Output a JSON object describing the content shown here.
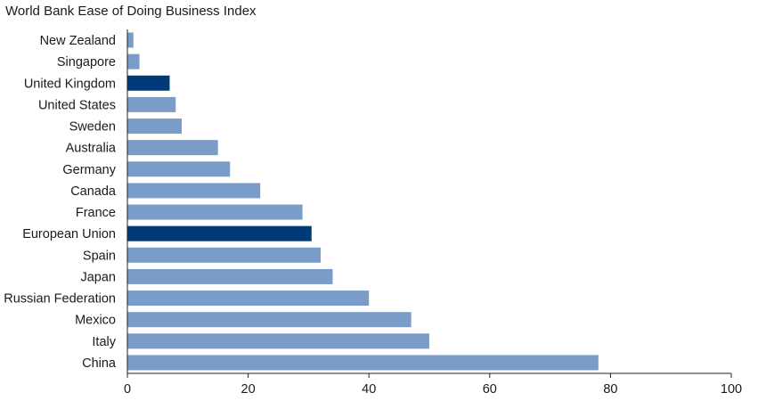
{
  "chart_data": {
    "type": "bar",
    "orientation": "horizontal",
    "title": "World Bank Ease of Doing Business Index",
    "xlabel": "",
    "ylabel": "",
    "categories": [
      "New Zealand",
      "Singapore",
      "United Kingdom",
      "United States",
      "Sweden",
      "Australia",
      "Germany",
      "Canada",
      "France",
      "European Union",
      "Spain",
      "Japan",
      "Russian Federation",
      "Mexico",
      "Italy",
      "China"
    ],
    "values": [
      1,
      2,
      7,
      8,
      9,
      15,
      17,
      22,
      29,
      30.5,
      32,
      34,
      40,
      47,
      50,
      78
    ],
    "highlighted": [
      "United Kingdom",
      "European Union"
    ],
    "xlim": [
      0,
      100
    ],
    "xticks": [
      0,
      20,
      40,
      60,
      80,
      100
    ],
    "grid": false,
    "legend": "none",
    "colors": {
      "bar": "#7a9cc8",
      "highlight": "#003a78",
      "axis": "#222222"
    }
  }
}
